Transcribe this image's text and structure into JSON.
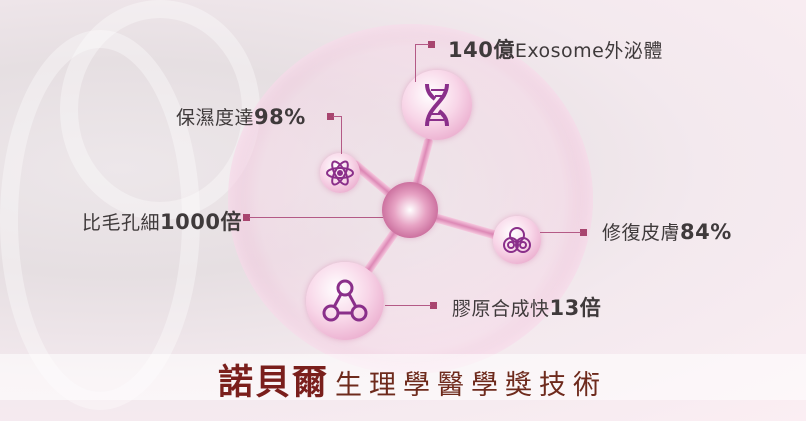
{
  "labels": {
    "exosome": {
      "text": "",
      "bold": "140億",
      "rest": "Exosome外泌體"
    },
    "moisture": {
      "text": "保濕度達",
      "bold": "98%"
    },
    "pore": {
      "text": "比毛孔細",
      "bold": "1000倍"
    },
    "repair": {
      "text": "修復皮膚",
      "bold": "84%"
    },
    "collagen": {
      "text": "膠原合成快",
      "bold": "13倍"
    }
  },
  "banner": {
    "brand": "諾貝爾",
    "tagline": "生理學醫學獎技術"
  },
  "icons": [
    "dna-icon",
    "atom-icon",
    "cells-icon",
    "molecule-icon"
  ],
  "colors": {
    "accent": "#a8456f",
    "brand_text": "#7a1f1c",
    "icon": "#8a2f8a"
  }
}
